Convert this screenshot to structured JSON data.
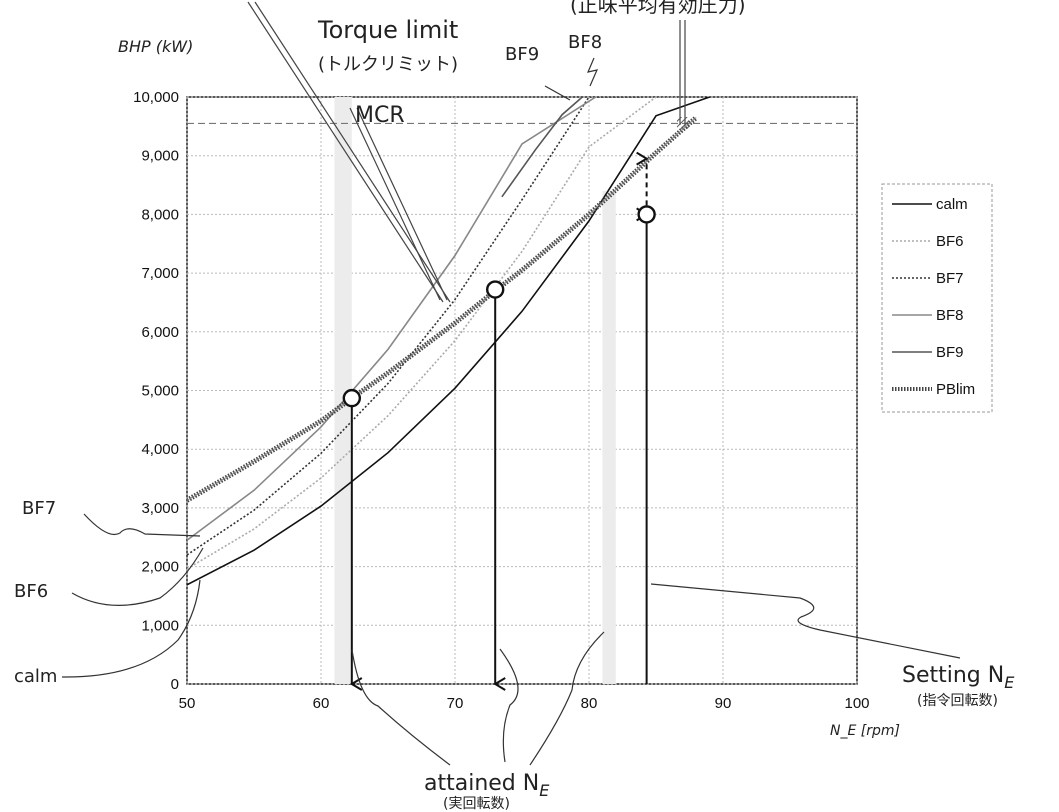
{
  "chart_data": {
    "type": "line",
    "title": "",
    "xlabel": "N_E [rpm]",
    "ylabel": "BHP (kW)",
    "xlim": [
      50,
      100
    ],
    "ylim": [
      0,
      10000
    ],
    "grid": true,
    "legend_position": "right",
    "x_ticks": [
      "50",
      "60",
      "70",
      "80",
      "90",
      "100"
    ],
    "y_ticks": [
      "0",
      "1,000",
      "2,000",
      "3,000",
      "4,000",
      "5,000",
      "6,000",
      "7,000",
      "8,000",
      "9,000",
      "10,000"
    ],
    "series": [
      {
        "name": "calm",
        "color": "#111111",
        "style": "solid",
        "x": [
          50,
          55,
          60,
          65,
          70,
          75,
          80,
          85,
          89
        ],
        "y": [
          1690,
          2280,
          3030,
          3940,
          5040,
          6350,
          7890,
          9680,
          10000
        ]
      },
      {
        "name": "BF6",
        "color": "#aaaaaa",
        "style": "dotted",
        "x": [
          50,
          55,
          60,
          65,
          70,
          75,
          80,
          85,
          87
        ],
        "y": [
          1960,
          2640,
          3510,
          4570,
          5850,
          7370,
          9150,
          10000,
          10000
        ]
      },
      {
        "name": "BF7",
        "color": "#333333",
        "style": "dotted",
        "x": [
          50,
          55,
          60,
          65,
          70,
          75,
          80,
          84
        ],
        "y": [
          2200,
          2960,
          3930,
          5120,
          6550,
          8250,
          10000,
          10000
        ]
      },
      {
        "name": "BF8",
        "color": "#888888",
        "style": "solid",
        "x": [
          50,
          55,
          60,
          65,
          70,
          75,
          80.5
        ],
        "y": [
          2450,
          3300,
          4380,
          5700,
          7300,
          9200,
          10000
        ]
      },
      {
        "name": "BF9",
        "color": "#555555",
        "style": "solid",
        "x": [
          73.5,
          76,
          78,
          79.5
        ],
        "y": [
          8300,
          9100,
          9700,
          10000
        ]
      },
      {
        "name": "PBlim",
        "color": "#444444",
        "style": "hatched",
        "x": [
          50,
          55,
          60,
          62.3,
          65,
          70,
          73,
          75,
          80,
          85,
          88
        ],
        "y": [
          3130,
          3790,
          4480,
          4870,
          5300,
          6150,
          6700,
          7050,
          8000,
          9050,
          9650
        ]
      }
    ],
    "mcr_line": {
      "label": "MCR",
      "y": 9550
    },
    "markers": [
      {
        "x": 62.3,
        "y": 4870
      },
      {
        "x": 73.0,
        "y": 6720
      },
      {
        "x": 84.3,
        "y": 8000
      }
    ],
    "vertical_arrows": [
      {
        "x": 62.3,
        "y_from": 4870,
        "y_to": 0,
        "direction": "down",
        "style": "solid"
      },
      {
        "x": 73.0,
        "y_from": 6720,
        "y_to": 0,
        "direction": "down",
        "style": "solid"
      },
      {
        "x": 81.5,
        "y_from": 8400,
        "y_to": 0,
        "direction": "none",
        "style": "shaded"
      },
      {
        "x": 84.3,
        "y_from": 0,
        "y_to": 8000,
        "direction": "up",
        "style": "solid"
      },
      {
        "x": 84.3,
        "y_from": 8000,
        "y_to": 8950,
        "direction": "up",
        "style": "dashed"
      }
    ],
    "shaded_bands": [
      {
        "x": [
          61.0,
          62.3
        ],
        "y": [
          0,
          10000
        ]
      },
      {
        "x": [
          81.0,
          82.0
        ],
        "y": [
          0,
          8400
        ]
      }
    ],
    "annotations": {
      "torque_limit": "Torque limit",
      "torque_limit_jp": "(トルクリミット)",
      "bmep_jp": "(正味平均有効圧力)",
      "bf9": "BF9",
      "bf8": "BF8",
      "mcr": "MCR",
      "bf7": "BF7",
      "bf6": "BF6",
      "calm": "calm",
      "setting_ne": "Setting N",
      "setting_ne_sub": "E",
      "setting_ne_jp": "(指令回転数)",
      "attained_ne": "attained N",
      "attained_ne_sub": "E",
      "attained_ne_jp": "(実回転数)"
    }
  }
}
